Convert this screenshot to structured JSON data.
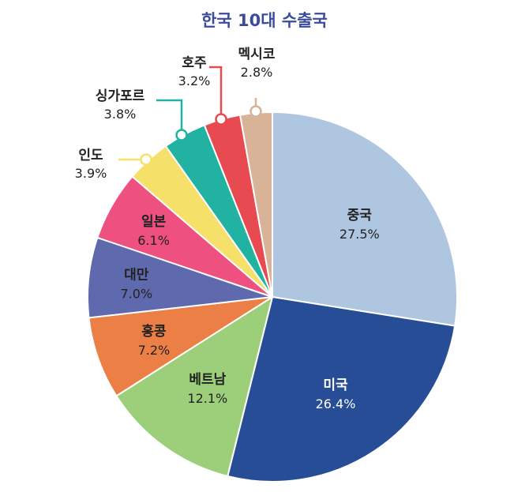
{
  "chart_data": {
    "type": "pie",
    "title": "한국 10대 수출국",
    "slices": [
      {
        "name": "중국",
        "value": 27.5,
        "label": "27.5%",
        "color": "#aec6e0",
        "text_color": "#222222"
      },
      {
        "name": "미국",
        "value": 26.4,
        "label": "26.4%",
        "color": "#264d96",
        "text_color": "#ffffff"
      },
      {
        "name": "베트남",
        "value": 12.1,
        "label": "12.1%",
        "color": "#9dcf7a",
        "text_color": "#222222"
      },
      {
        "name": "홍콩",
        "value": 7.2,
        "label": "7.2%",
        "color": "#ec7f45",
        "text_color": "#222222"
      },
      {
        "name": "대만",
        "value": 7.0,
        "label": "7.0%",
        "color": "#5f69ad",
        "text_color": "#222222"
      },
      {
        "name": "일본",
        "value": 6.1,
        "label": "6.1%",
        "color": "#ee5080",
        "text_color": "#222222"
      },
      {
        "name": "인도",
        "value": 3.9,
        "label": "3.9%",
        "color": "#f5e06a",
        "text_color": "#222222"
      },
      {
        "name": "싱가포르",
        "value": 3.8,
        "label": "3.8%",
        "color": "#21b2a2",
        "text_color": "#222222"
      },
      {
        "name": "호주",
        "value": 3.2,
        "label": "3.2%",
        "color": "#e84a52",
        "text_color": "#222222"
      },
      {
        "name": "멕시코",
        "value": 2.8,
        "label": "2.8%",
        "color": "#d9b397",
        "text_color": "#222222"
      }
    ]
  }
}
